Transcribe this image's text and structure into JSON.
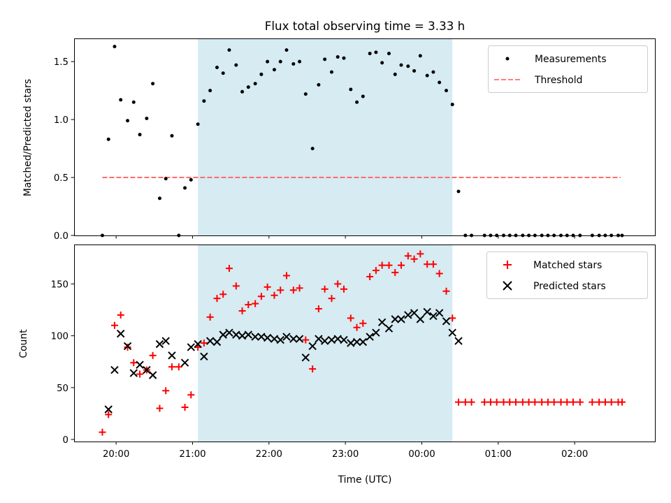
{
  "chart_data": [
    {
      "type": "scatter",
      "title": "Flux total observing time = 3.33 h",
      "ylabel": "Matched/Predicted stars",
      "xlabel": "",
      "ylim": [
        0,
        1.7
      ],
      "yticks": [
        "0.0",
        "0.5",
        "1.0",
        "1.5"
      ],
      "ytick_values": [
        0,
        0.5,
        1.0,
        1.5
      ],
      "shaded_region": {
        "x_start": 21.07,
        "x_end": 24.4,
        "color": "#add8e6"
      },
      "threshold": {
        "name": "Threshold",
        "value": 0.5,
        "x_start": 19.82,
        "x_end": 26.6,
        "color": "#ff6b6b"
      },
      "legend": [
        "Measurements",
        "Threshold"
      ],
      "legend_position": "top-right",
      "series": [
        {
          "name": "Measurements",
          "marker": "dot",
          "color": "#000000",
          "x": [
            19.82,
            19.9,
            19.98,
            20.06,
            20.15,
            20.23,
            20.31,
            20.4,
            20.48,
            20.57,
            20.65,
            20.73,
            20.82,
            20.9,
            20.98,
            21.07,
            21.15,
            21.23,
            21.32,
            21.4,
            21.48,
            21.57,
            21.65,
            21.73,
            21.82,
            21.9,
            21.98,
            22.07,
            22.15,
            22.23,
            22.32,
            22.4,
            22.48,
            22.57,
            22.65,
            22.73,
            22.82,
            22.9,
            22.98,
            23.07,
            23.15,
            23.23,
            23.32,
            23.4,
            23.48,
            23.57,
            23.65,
            23.73,
            23.82,
            23.9,
            23.98,
            24.07,
            24.15,
            24.23,
            24.32,
            24.4,
            24.48,
            24.57,
            24.65,
            24.82,
            24.9,
            24.98,
            25.07,
            25.15,
            25.23,
            25.32,
            25.4,
            25.48,
            25.57,
            25.65,
            25.73,
            25.82,
            25.9,
            25.98,
            26.07,
            26.23,
            26.32,
            26.4,
            26.48,
            26.57,
            26.62
          ],
          "y": [
            0.0,
            0.83,
            1.63,
            1.17,
            0.99,
            1.15,
            0.87,
            1.01,
            1.31,
            0.32,
            0.49,
            0.86,
            0.0,
            0.41,
            0.48,
            0.96,
            1.16,
            1.25,
            1.45,
            1.4,
            1.6,
            1.47,
            1.24,
            1.28,
            1.31,
            1.39,
            1.5,
            1.43,
            1.5,
            1.6,
            1.48,
            1.5,
            1.22,
            0.75,
            1.3,
            1.52,
            1.41,
            1.54,
            1.53,
            1.26,
            1.15,
            1.2,
            1.57,
            1.58,
            1.49,
            1.57,
            1.39,
            1.47,
            1.46,
            1.42,
            1.55,
            1.38,
            1.41,
            1.32,
            1.25,
            1.13,
            0.38,
            0.0,
            0.0,
            0.0,
            0.0,
            0.0,
            0.0,
            0.0,
            0.0,
            0.0,
            0.0,
            0.0,
            0.0,
            0.0,
            0.0,
            0.0,
            0.0,
            0.0,
            0.0,
            0.0,
            0.0,
            0.0,
            0.0,
            0.0,
            0.0
          ]
        }
      ]
    },
    {
      "type": "scatter",
      "title": "",
      "xlabel": "Time (UTC)",
      "ylabel": "Count",
      "ylim": [
        -2,
        188
      ],
      "yticks": [
        "0",
        "50",
        "100",
        "150"
      ],
      "ytick_values": [
        0,
        50,
        100,
        150
      ],
      "xlim": [
        19.45,
        27.05
      ],
      "xticks": [
        "20:00",
        "21:00",
        "22:00",
        "23:00",
        "00:00",
        "01:00",
        "02:00"
      ],
      "xtick_values": [
        20,
        21,
        22,
        23,
        24,
        25,
        26
      ],
      "shaded_region": {
        "x_start": 21.07,
        "x_end": 24.4,
        "color": "#add8e6"
      },
      "legend": [
        "Matched stars",
        "Predicted stars"
      ],
      "legend_position": "top-right",
      "series": [
        {
          "name": "Matched stars",
          "marker": "plus",
          "color": "#ff0000",
          "x": [
            19.82,
            19.9,
            19.98,
            20.06,
            20.15,
            20.23,
            20.31,
            20.4,
            20.48,
            20.57,
            20.65,
            20.73,
            20.82,
            20.9,
            20.98,
            21.07,
            21.15,
            21.23,
            21.32,
            21.4,
            21.48,
            21.57,
            21.65,
            21.73,
            21.82,
            21.9,
            21.98,
            22.07,
            22.15,
            22.23,
            22.32,
            22.4,
            22.48,
            22.57,
            22.65,
            22.73,
            22.82,
            22.9,
            22.98,
            23.07,
            23.15,
            23.23,
            23.32,
            23.4,
            23.48,
            23.57,
            23.65,
            23.73,
            23.82,
            23.9,
            23.98,
            24.07,
            24.15,
            24.23,
            24.32,
            24.4,
            24.48,
            24.57,
            24.65,
            24.82,
            24.9,
            24.98,
            25.07,
            25.15,
            25.23,
            25.32,
            25.4,
            25.48,
            25.57,
            25.65,
            25.73,
            25.82,
            25.9,
            25.98,
            26.07,
            26.23,
            26.32,
            26.4,
            26.48,
            26.57,
            26.62
          ],
          "y": [
            7,
            24,
            110,
            120,
            89,
            74,
            63,
            67,
            81,
            30,
            47,
            70,
            70,
            31,
            43,
            89,
            93,
            118,
            136,
            140,
            165,
            148,
            124,
            130,
            131,
            138,
            147,
            139,
            144,
            158,
            144,
            146,
            96,
            68,
            126,
            145,
            136,
            150,
            145,
            117,
            108,
            112,
            157,
            163,
            168,
            168,
            161,
            168,
            177,
            174,
            179,
            169,
            169,
            160,
            143,
            117,
            36,
            36,
            36,
            36,
            36,
            36,
            36,
            36,
            36,
            36,
            36,
            36,
            36,
            36,
            36,
            36,
            36,
            36,
            36,
            36,
            36,
            36,
            36,
            36,
            36
          ]
        },
        {
          "name": "Predicted stars",
          "marker": "x",
          "color": "#000000",
          "x": [
            19.9,
            19.98,
            20.06,
            20.15,
            20.23,
            20.31,
            20.4,
            20.48,
            20.57,
            20.65,
            20.73,
            20.9,
            20.98,
            21.07,
            21.15,
            21.23,
            21.32,
            21.4,
            21.48,
            21.57,
            21.65,
            21.73,
            21.82,
            21.9,
            21.98,
            22.07,
            22.15,
            22.23,
            22.32,
            22.4,
            22.48,
            22.57,
            22.65,
            22.73,
            22.82,
            22.9,
            22.98,
            23.07,
            23.15,
            23.23,
            23.32,
            23.4,
            23.48,
            23.57,
            23.65,
            23.73,
            23.82,
            23.9,
            23.98,
            24.07,
            24.15,
            24.23,
            24.32,
            24.4,
            24.48
          ],
          "y": [
            29,
            67,
            102,
            90,
            64,
            72,
            67,
            62,
            92,
            95,
            81,
            74,
            89,
            92,
            80,
            95,
            94,
            101,
            103,
            101,
            100,
            101,
            99,
            99,
            98,
            97,
            96,
            99,
            97,
            97,
            79,
            90,
            97,
            95,
            96,
            97,
            96,
            93,
            94,
            94,
            99,
            103,
            113,
            107,
            116,
            116,
            120,
            122,
            116,
            123,
            119,
            122,
            114,
            103,
            95
          ]
        }
      ]
    }
  ]
}
